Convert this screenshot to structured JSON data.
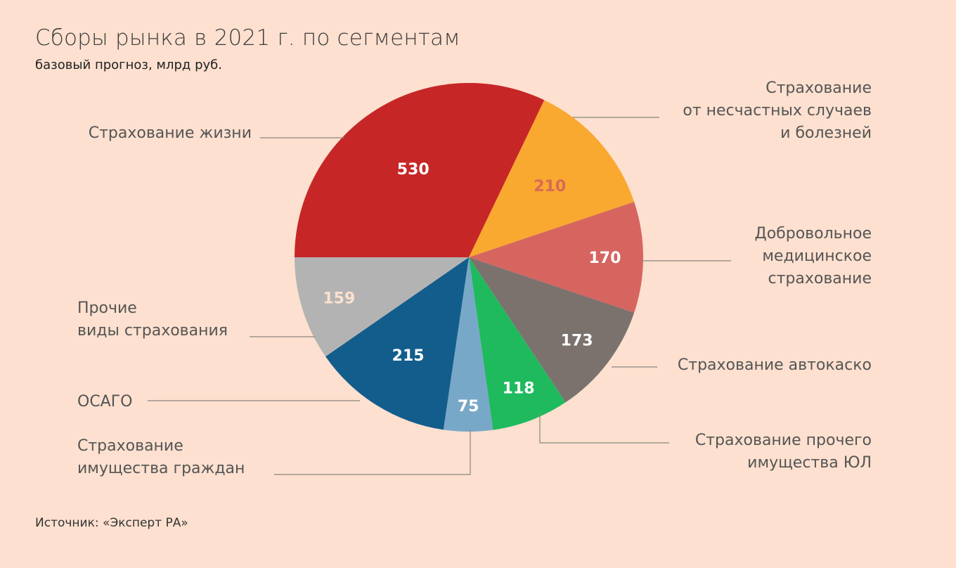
{
  "header": {
    "title": "Сборы рынка в 2021 г. по сегментам",
    "subtitle": "базовый прогноз, млрд руб."
  },
  "footer": {
    "source": "Источник: «Эксперт РА»"
  },
  "chart_data": {
    "type": "pie",
    "title": "Сборы рынка в 2021 г. по сегментам",
    "subtitle": "базовый прогноз, млрд руб.",
    "start_angle_deg": 180,
    "direction": "clockwise",
    "slices": [
      {
        "label": "Страхование жизни",
        "value": 530,
        "color": "#c72627",
        "value_color": "#ffffff",
        "label_lines": [
          "Страхование жизни"
        ]
      },
      {
        "label": "Страхование от несчастных случаев и болезней",
        "value": 210,
        "color": "#f9a830",
        "value_color": "#d96a55",
        "label_lines": [
          "Страхование",
          "от несчастных случаев",
          "и болезней"
        ]
      },
      {
        "label": "Добровольное медицинское страхование",
        "value": 170,
        "color": "#d66560",
        "value_color": "#ffffff",
        "label_lines": [
          "Добровольное",
          "медицинское",
          "страхование"
        ]
      },
      {
        "label": "Страхование автокаско",
        "value": 173,
        "color": "#7b726e",
        "value_color": "#ffffff",
        "label_lines": [
          "Страхование автокаско"
        ]
      },
      {
        "label": "Страхование прочего имущества ЮЛ",
        "value": 118,
        "color": "#1fba5e",
        "value_color": "#ffffff",
        "label_lines": [
          "Страхование прочего",
          "имущества ЮЛ"
        ]
      },
      {
        "label": "Страхование имущества граждан",
        "value": 75,
        "color": "#78a8c8",
        "value_color": "#ffffff",
        "label_lines": [
          "Страхование",
          "имущества граждан"
        ]
      },
      {
        "label": "ОСАГО",
        "value": 215,
        "color": "#125d8c",
        "value_color": "#ffffff",
        "label_lines": [
          "ОСАГО"
        ]
      },
      {
        "label": "Прочие виды страхования",
        "value": 159,
        "color": "#b3b3b3",
        "value_color": "#fde0cf",
        "label_lines": [
          "Прочие",
          "виды страхования"
        ]
      }
    ]
  }
}
